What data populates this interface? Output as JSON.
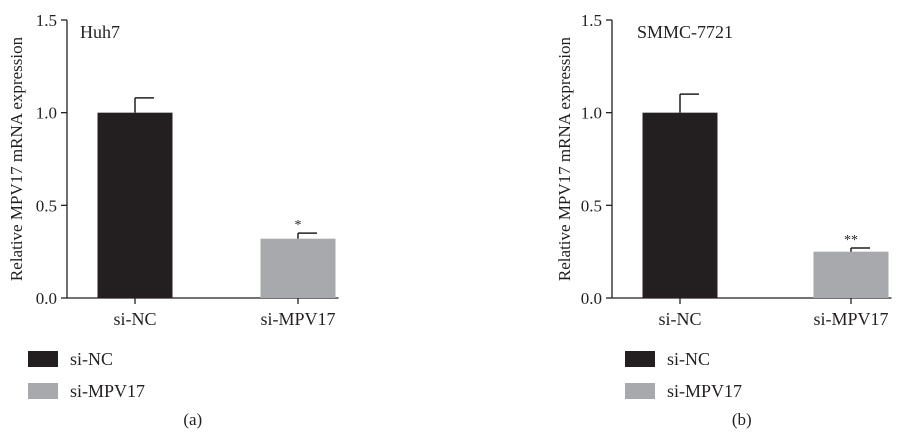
{
  "colors": {
    "si_nc": "#231f20",
    "si_mpv17": "#a7a9ac",
    "axis": "#231f20"
  },
  "chart_data": [
    {
      "type": "bar",
      "title": "Huh7",
      "panel_label": "(a)",
      "xlabel": "",
      "ylabel": "Relative MPV17 mRNA expression",
      "ylim": [
        0,
        1.5
      ],
      "yticks": [
        "0.0",
        "0.5",
        "1.0",
        "1.5"
      ],
      "categories": [
        "si-NC",
        "si-MPV17"
      ],
      "values": [
        1.0,
        0.32
      ],
      "errors": [
        0.08,
        0.03
      ],
      "significance": [
        "",
        "*"
      ],
      "legend": [
        "si-NC",
        "si-MPV17"
      ],
      "legend_position": "bottom-left",
      "grid": false
    },
    {
      "type": "bar",
      "title": "SMMC-7721",
      "panel_label": "(b)",
      "xlabel": "",
      "ylabel": "Relative MPV17 mRNA expression",
      "ylim": [
        0,
        1.5
      ],
      "yticks": [
        "0.0",
        "0.5",
        "1.0",
        "1.5"
      ],
      "categories": [
        "si-NC",
        "si-MPV17"
      ],
      "values": [
        1.0,
        0.25
      ],
      "errors": [
        0.1,
        0.02
      ],
      "significance": [
        "",
        "**"
      ],
      "legend": [
        "si-NC",
        "si-MPV17"
      ],
      "legend_position": "bottom-left",
      "grid": false
    }
  ]
}
